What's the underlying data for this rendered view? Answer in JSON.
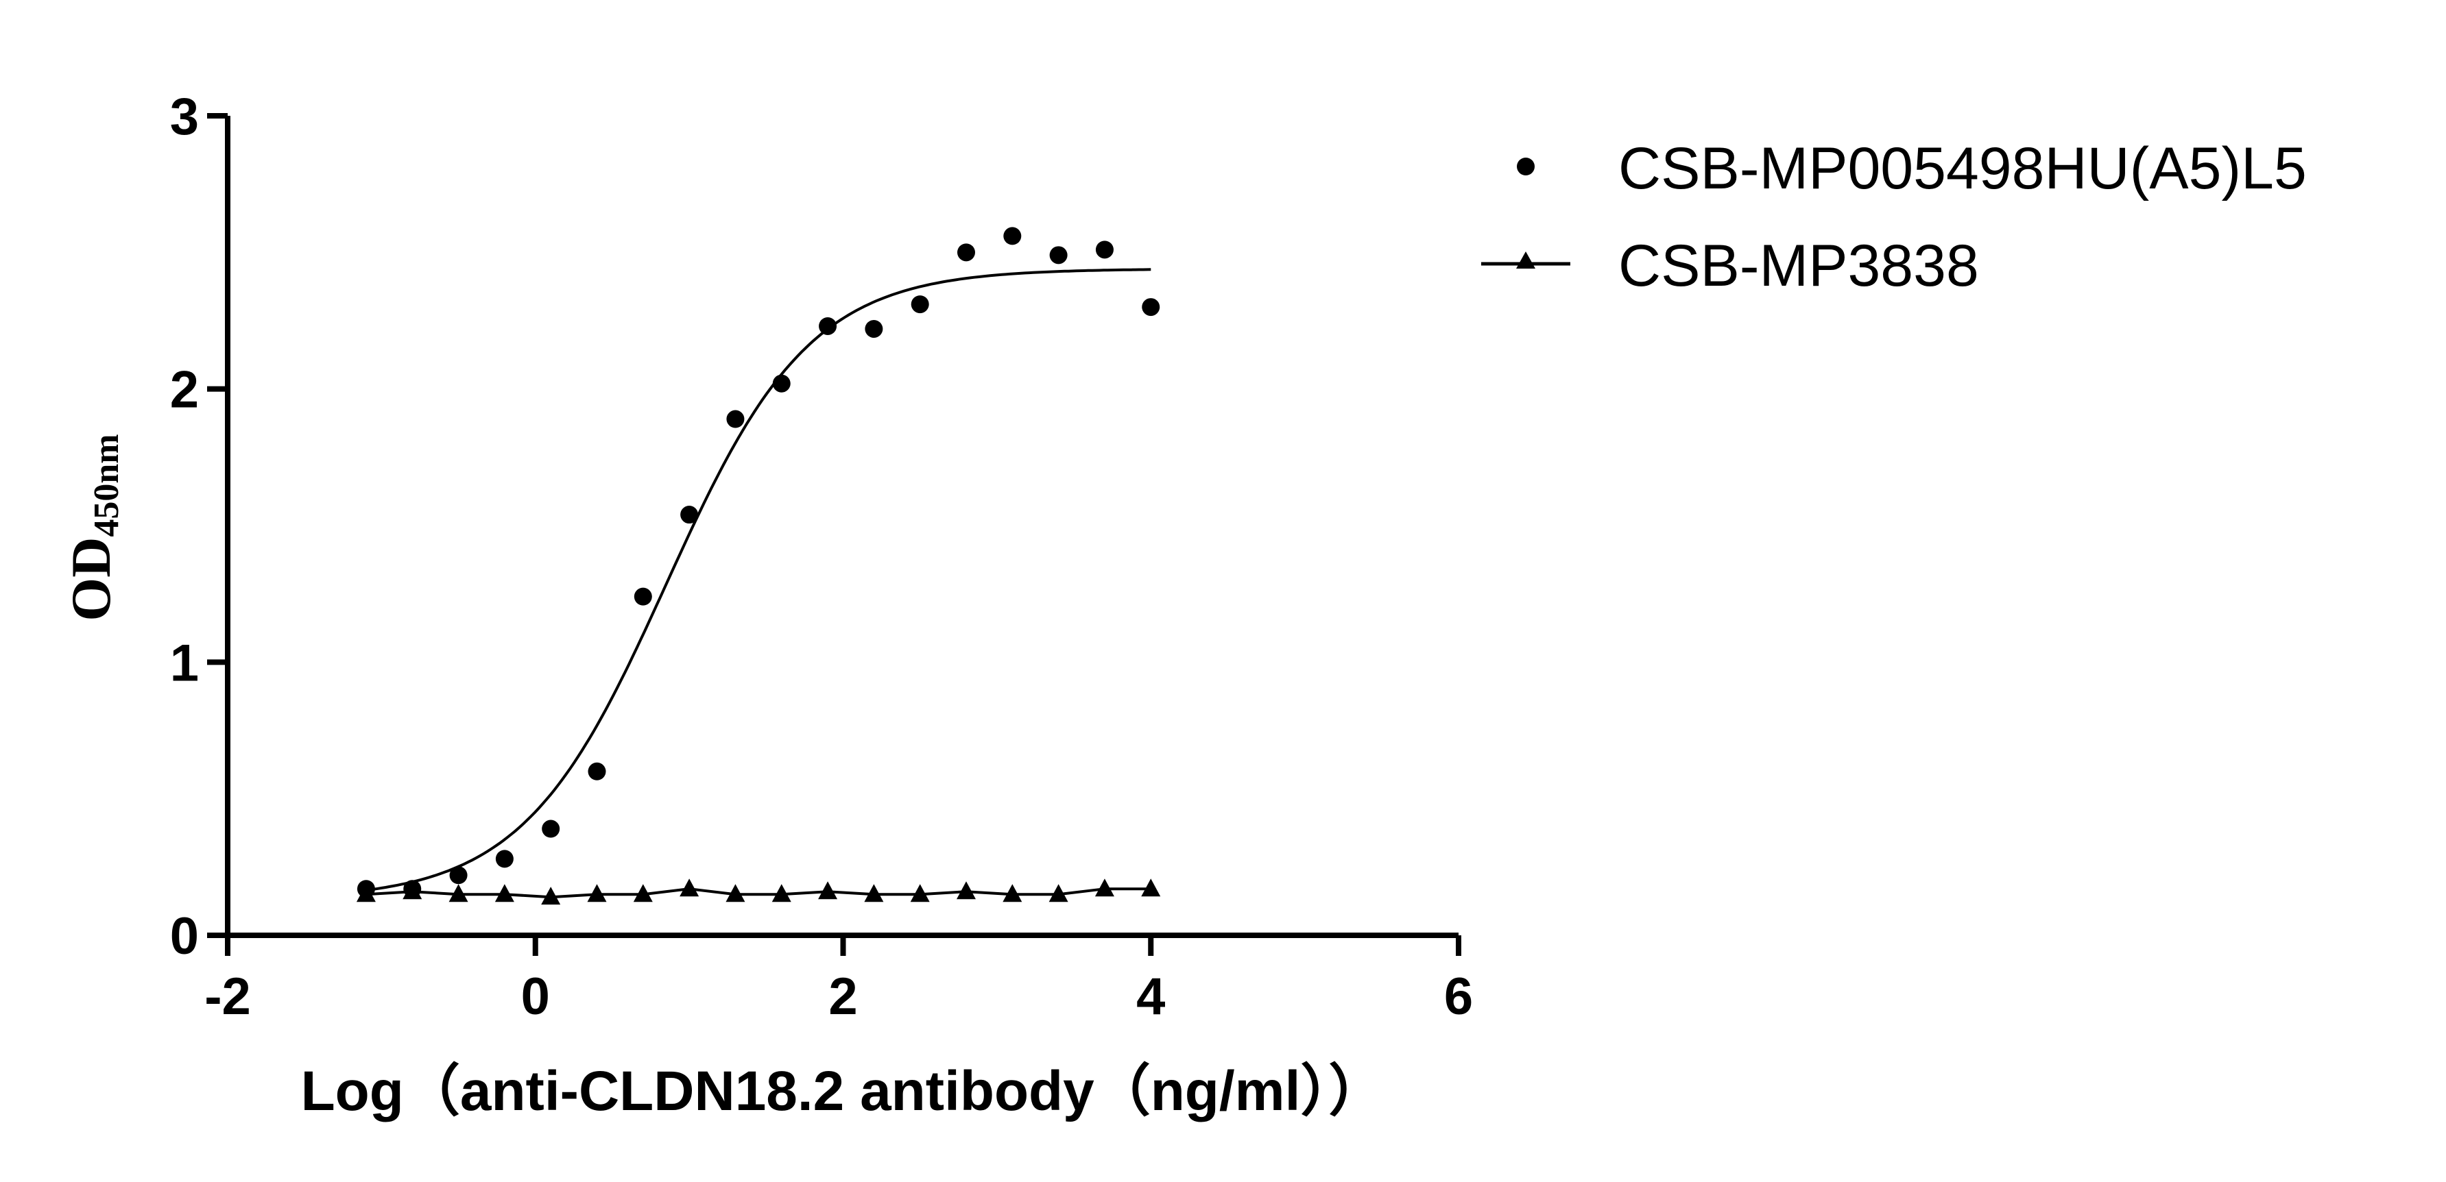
{
  "chart_data": {
    "type": "scatter",
    "xlabel": "Log（anti-CLDN18.2 antibody（ng/ml））",
    "ylabel": "OD",
    "ylabel_sub": "450nm",
    "xlim": [
      -2,
      6
    ],
    "ylim": [
      0,
      3
    ],
    "xticks": [
      -2,
      0,
      2,
      4,
      6
    ],
    "yticks": [
      0,
      1,
      2,
      3
    ],
    "grid": false,
    "legend_position": "top-right",
    "x": [
      -1.1,
      -0.8,
      -0.5,
      -0.2,
      0.1,
      0.4,
      0.7,
      1.0,
      1.3,
      1.6,
      1.9,
      2.2,
      2.5,
      2.8,
      3.1,
      3.4,
      3.7,
      4.0
    ],
    "series": [
      {
        "name": "CSB-MP005498HU(A5)L5",
        "marker": "circle",
        "line": "sigmoid-fit",
        "values": [
          0.17,
          0.17,
          0.22,
          0.28,
          0.39,
          0.6,
          1.24,
          1.54,
          1.89,
          2.02,
          2.23,
          2.22,
          2.31,
          2.5,
          2.56,
          2.49,
          2.51,
          2.3
        ],
        "fit": {
          "bottom": 0.13,
          "top": 2.44,
          "log_ec50": 0.85,
          "hill": 0.93
        }
      },
      {
        "name": "CSB-MP3838",
        "marker": "triangle",
        "line": "connected",
        "values": [
          0.15,
          0.16,
          0.15,
          0.15,
          0.14,
          0.15,
          0.15,
          0.17,
          0.15,
          0.15,
          0.16,
          0.15,
          0.15,
          0.16,
          0.15,
          0.15,
          0.17,
          0.17
        ]
      }
    ],
    "color": "#000000"
  }
}
